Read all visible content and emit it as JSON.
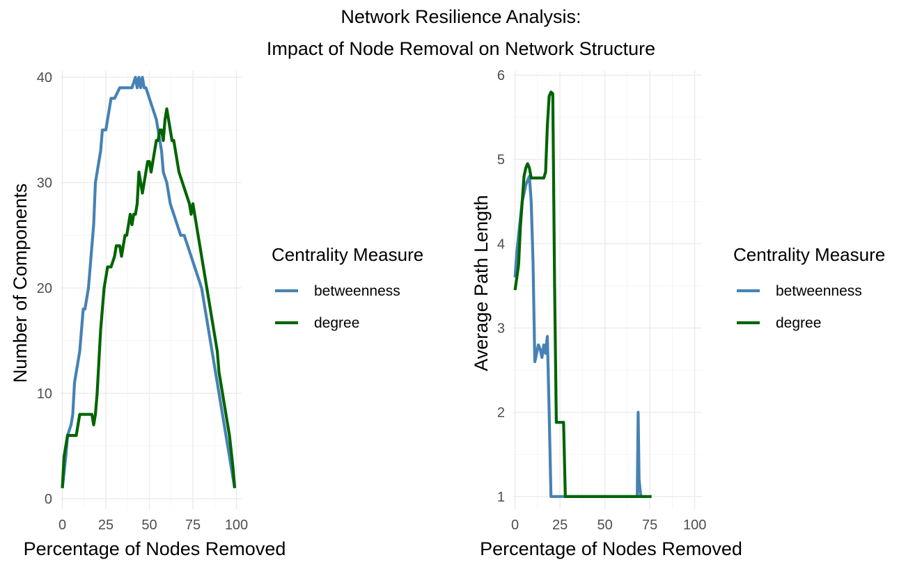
{
  "title_line1": "Network Resilience Analysis:",
  "title_line2": "Impact of Node Removal on Network Structure",
  "colors": {
    "betweenness": "#4682B4",
    "degree": "#006400"
  },
  "chart_data": [
    {
      "type": "line",
      "title": "",
      "xlabel": "Percentage of Nodes Removed",
      "ylabel": "Number of Components",
      "xlim": [
        -1,
        103
      ],
      "ylim": [
        -1,
        40.6
      ],
      "xticks": [
        0,
        25,
        50,
        75,
        100
      ],
      "yticks": [
        0,
        10,
        20,
        30,
        40
      ],
      "grid": true,
      "legend": {
        "title": "Centrality Measure",
        "position": "right",
        "entries": [
          "betweenness",
          "degree"
        ]
      },
      "series": [
        {
          "name": "betweenness",
          "x": [
            0,
            2,
            3,
            5,
            6,
            7,
            8,
            9,
            10,
            12,
            13,
            15,
            17,
            18,
            19,
            20,
            21,
            22,
            23,
            25,
            27,
            28,
            30,
            33,
            35,
            38,
            40,
            42,
            43,
            44,
            45,
            46,
            47,
            48,
            50,
            52,
            54,
            55,
            57,
            58,
            60,
            62,
            64,
            66,
            68,
            70,
            72,
            74,
            76,
            78,
            80,
            82,
            84,
            86,
            88,
            90,
            92,
            94,
            96,
            98,
            99
          ],
          "y": [
            1,
            4,
            6,
            7,
            8,
            11,
            12,
            13,
            14,
            18,
            18,
            20,
            24,
            26,
            30,
            31,
            32,
            33,
            35,
            35,
            37,
            38,
            38,
            39,
            39,
            39,
            39,
            40,
            39,
            40,
            39,
            40,
            39,
            39,
            38,
            37,
            36,
            35,
            33,
            31,
            30,
            28,
            27,
            26,
            25,
            25,
            24,
            23,
            22,
            21,
            20,
            18,
            16,
            14,
            12,
            10,
            8,
            6,
            4,
            2,
            1
          ]
        },
        {
          "name": "degree",
          "x": [
            0,
            1,
            2,
            3,
            4,
            5,
            7,
            8,
            9,
            10,
            12,
            14,
            16,
            17,
            18,
            19,
            20,
            21,
            22,
            23,
            24,
            25,
            26,
            27,
            28,
            30,
            31,
            32,
            33,
            34,
            35,
            36,
            37,
            38,
            39,
            40,
            41,
            42,
            43,
            44,
            45,
            46,
            47,
            48,
            49,
            50,
            51,
            52,
            53,
            54,
            55,
            56,
            57,
            58,
            59,
            60,
            61,
            62,
            63,
            64,
            65,
            67,
            69,
            71,
            73,
            74,
            75,
            76,
            77,
            79,
            81,
            83,
            85,
            86,
            87,
            88,
            89,
            90,
            92,
            94,
            96,
            98,
            99
          ],
          "y": [
            1,
            4,
            5,
            6,
            6,
            6,
            6,
            6,
            7,
            8,
            8,
            8,
            8,
            8,
            7,
            8,
            10,
            13,
            16,
            18,
            20,
            21,
            22,
            22,
            22,
            23,
            24,
            24,
            24,
            23,
            24,
            25,
            25,
            26,
            27,
            26,
            27,
            27,
            28,
            31,
            30,
            29,
            30,
            31,
            32,
            32,
            31,
            32,
            33,
            34,
            34,
            35,
            35,
            34,
            36,
            37,
            36,
            35,
            34,
            34,
            33,
            31,
            30,
            29,
            28,
            27,
            28,
            27,
            26,
            24,
            22,
            20,
            18,
            17,
            16,
            15,
            14,
            12,
            10,
            8,
            6,
            3,
            1
          ]
        }
      ]
    },
    {
      "type": "line",
      "title": "",
      "xlabel": "Percentage of Nodes Removed",
      "ylabel": "Average Path Length",
      "xlim": [
        -1,
        104
      ],
      "ylim": [
        0.85,
        6.05
      ],
      "xticks": [
        0,
        25,
        50,
        75,
        100
      ],
      "yticks": [
        1,
        2,
        3,
        4,
        5,
        6
      ],
      "grid": true,
      "legend": {
        "title": "Centrality Measure",
        "position": "right",
        "entries": [
          "betweenness",
          "degree"
        ]
      },
      "series": [
        {
          "name": "betweenness",
          "x": [
            0,
            1,
            2,
            3,
            4,
            5,
            6,
            7,
            8,
            9,
            10,
            11,
            12,
            13,
            14,
            15,
            16,
            17,
            18,
            19,
            20,
            21,
            25,
            30,
            40,
            50,
            60,
            68,
            68.5,
            69,
            70,
            71,
            72,
            73
          ],
          "y": [
            3.6,
            3.9,
            4.1,
            4.3,
            4.5,
            4.6,
            4.7,
            4.75,
            4.8,
            4.5,
            3.8,
            2.6,
            2.7,
            2.8,
            2.75,
            2.65,
            2.8,
            2.7,
            2.9,
            2.0,
            1.0,
            1.0,
            1.0,
            1.0,
            1.0,
            1.0,
            1.0,
            1.0,
            2.0,
            1.2,
            1.0,
            1.0,
            1.0,
            1.0
          ]
        },
        {
          "name": "degree",
          "x": [
            0,
            1,
            2,
            3,
            4,
            5,
            6,
            7,
            8,
            9,
            10,
            11,
            12,
            13,
            14,
            15,
            16,
            17,
            18,
            19,
            20,
            21,
            22,
            23,
            24,
            25,
            26,
            27,
            28,
            29,
            30,
            40,
            50,
            60,
            70,
            76
          ],
          "y": [
            3.45,
            3.6,
            3.75,
            4.2,
            4.5,
            4.8,
            4.9,
            4.95,
            4.9,
            4.78,
            4.78,
            4.78,
            4.78,
            4.78,
            4.78,
            4.78,
            4.78,
            4.85,
            5.4,
            5.75,
            5.8,
            5.78,
            3.5,
            1.88,
            1.88,
            1.88,
            1.88,
            1.88,
            1.0,
            1.0,
            1.0,
            1.0,
            1.0,
            1.0,
            1.0,
            1.0
          ]
        }
      ]
    }
  ]
}
